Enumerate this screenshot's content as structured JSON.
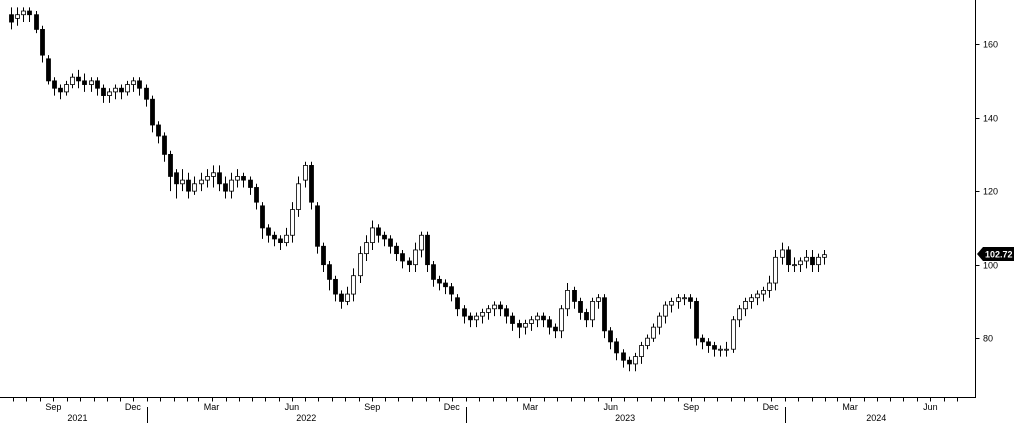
{
  "chart_data": {
    "type": "candlestick",
    "title": "",
    "xlabel": "",
    "ylabel": "",
    "ylim": [
      64,
      172
    ],
    "y_ticks": [
      80,
      100,
      120,
      140,
      160
    ],
    "x_range": [
      "2021-07-26",
      "2024-07-29"
    ],
    "month_labels": [
      {
        "label": "Sep",
        "date": "2021-09-01"
      },
      {
        "label": "Dec",
        "date": "2021-12-01"
      },
      {
        "label": "Mar",
        "date": "2022-03-01"
      },
      {
        "label": "Jun",
        "date": "2022-06-01"
      },
      {
        "label": "Sep",
        "date": "2022-09-01"
      },
      {
        "label": "Dec",
        "date": "2022-12-01"
      },
      {
        "label": "Mar",
        "date": "2023-03-01"
      },
      {
        "label": "Jun",
        "date": "2023-06-01"
      },
      {
        "label": "Sep",
        "date": "2023-09-01"
      },
      {
        "label": "Dec",
        "date": "2023-12-01"
      },
      {
        "label": "Mar",
        "date": "2024-03-01"
      },
      {
        "label": "Jun",
        "date": "2024-06-01"
      }
    ],
    "years": [
      {
        "label": "2021",
        "start": "2021-07-26",
        "end": "2022-01-01"
      },
      {
        "label": "2022",
        "start": "2022-01-01",
        "end": "2023-01-01"
      },
      {
        "label": "2023",
        "start": "2023-01-01",
        "end": "2024-01-01"
      },
      {
        "label": "2024",
        "start": "2024-01-01",
        "end": "2024-07-29"
      }
    ],
    "last_value": "102.72",
    "colors": {
      "up": "#ffffff",
      "down": "#000000",
      "line": "#000000",
      "badge": "#000000"
    },
    "weeks_start": "2021-07-26",
    "close": [
      166,
      168,
      169,
      168,
      164,
      157,
      150,
      148,
      147,
      149,
      151,
      150,
      149,
      150,
      148,
      146,
      147,
      148,
      147,
      149,
      150,
      148,
      145,
      138,
      135,
      130,
      124,
      122,
      123,
      120,
      122,
      123,
      124,
      125,
      122,
      120,
      123,
      124,
      123,
      121,
      117,
      110,
      108,
      107,
      106,
      108,
      115,
      122,
      127,
      117,
      105,
      100,
      96,
      92,
      90,
      92,
      97,
      103,
      106,
      110,
      108,
      107,
      105,
      103,
      101,
      100,
      104,
      108,
      100,
      96,
      95,
      94,
      92,
      88,
      86,
      85,
      86,
      87,
      88,
      89,
      88,
      86,
      84,
      83,
      84,
      85,
      86,
      85,
      83,
      82,
      88,
      93,
      90,
      87,
      85,
      90,
      91,
      82,
      79,
      76,
      74,
      73,
      75,
      78,
      80,
      83,
      86,
      89,
      90,
      91,
      91,
      90,
      80,
      79,
      78,
      77,
      77,
      77,
      85,
      88,
      90,
      91,
      92,
      93,
      95,
      102,
      104,
      100,
      100,
      101,
      102,
      100,
      102,
      102.72
    ],
    "open": [
      168,
      167,
      168,
      169,
      168,
      164,
      156,
      150,
      148,
      147,
      149,
      151,
      150,
      149,
      150,
      148,
      146,
      147,
      148,
      147,
      149,
      150,
      148,
      145,
      138,
      135,
      130,
      125,
      122,
      123,
      120,
      122,
      123,
      124,
      125,
      122,
      120,
      123,
      124,
      123,
      121,
      116,
      110,
      108,
      107,
      106,
      108,
      115,
      123,
      127,
      116,
      105,
      100,
      96,
      92,
      90,
      92,
      97,
      103,
      106,
      110,
      108,
      107,
      105,
      103,
      101,
      100,
      104,
      108,
      100,
      96,
      95,
      94,
      91,
      88,
      86,
      85,
      86,
      87,
      88,
      89,
      88,
      86,
      84,
      83,
      84,
      85,
      86,
      85,
      83,
      82,
      88,
      93,
      90,
      87,
      85,
      90,
      91,
      82,
      79,
      76,
      74,
      73,
      75,
      78,
      80,
      83,
      86,
      89,
      90,
      91,
      91,
      90,
      80,
      79,
      78,
      77,
      77,
      77,
      85,
      88,
      90,
      91,
      92,
      93,
      95,
      102,
      104,
      100,
      100,
      101,
      102,
      100,
      102
    ],
    "high": [
      170,
      170,
      170,
      170,
      169,
      165,
      157,
      151,
      149,
      150,
      152,
      153,
      152,
      151,
      151,
      149,
      148,
      149,
      149,
      150,
      151,
      151,
      149,
      146,
      139,
      136,
      131,
      126,
      126,
      125,
      124,
      125,
      126,
      127,
      127,
      124,
      125,
      126,
      125,
      124,
      122,
      117,
      111,
      109,
      108,
      110,
      117,
      124,
      128,
      128,
      117,
      106,
      101,
      97,
      93,
      94,
      99,
      105,
      108,
      112,
      111,
      109,
      108,
      106,
      104,
      102,
      106,
      109,
      109,
      101,
      97,
      96,
      95,
      92,
      89,
      87,
      87,
      88,
      89,
      90,
      90,
      89,
      87,
      85,
      85,
      86,
      87,
      87,
      86,
      84,
      89,
      95,
      94,
      91,
      88,
      91,
      92,
      92,
      83,
      80,
      77,
      75,
      76,
      79,
      81,
      84,
      87,
      90,
      91,
      92,
      92,
      92,
      91,
      81,
      80,
      79,
      78,
      79,
      86,
      89,
      91,
      92,
      93,
      94,
      97,
      104,
      106,
      105,
      102,
      102,
      104,
      104,
      103,
      104
    ],
    "low": [
      164,
      165,
      166,
      166,
      163,
      155,
      149,
      146,
      145,
      146,
      148,
      148,
      147,
      147,
      146,
      144,
      144,
      145,
      145,
      146,
      147,
      146,
      143,
      136,
      133,
      128,
      120,
      118,
      120,
      118,
      119,
      120,
      121,
      121,
      120,
      118,
      118,
      121,
      121,
      119,
      115,
      107,
      106,
      105,
      104,
      105,
      106,
      113,
      121,
      115,
      103,
      98,
      93,
      90,
      88,
      89,
      90,
      95,
      101,
      104,
      106,
      105,
      103,
      101,
      99,
      98,
      98,
      102,
      98,
      94,
      93,
      92,
      90,
      86,
      84,
      83,
      83,
      84,
      85,
      86,
      86,
      84,
      82,
      80,
      81,
      82,
      83,
      83,
      81,
      80,
      80,
      86,
      88,
      85,
      83,
      83,
      88,
      80,
      77,
      74,
      72,
      71,
      71,
      73,
      77,
      79,
      81,
      84,
      87,
      88,
      89,
      88,
      78,
      77,
      76,
      75,
      75,
      75,
      76,
      83,
      86,
      88,
      89,
      90,
      91,
      93,
      100,
      98,
      98,
      98,
      99,
      98,
      98,
      100
    ]
  }
}
